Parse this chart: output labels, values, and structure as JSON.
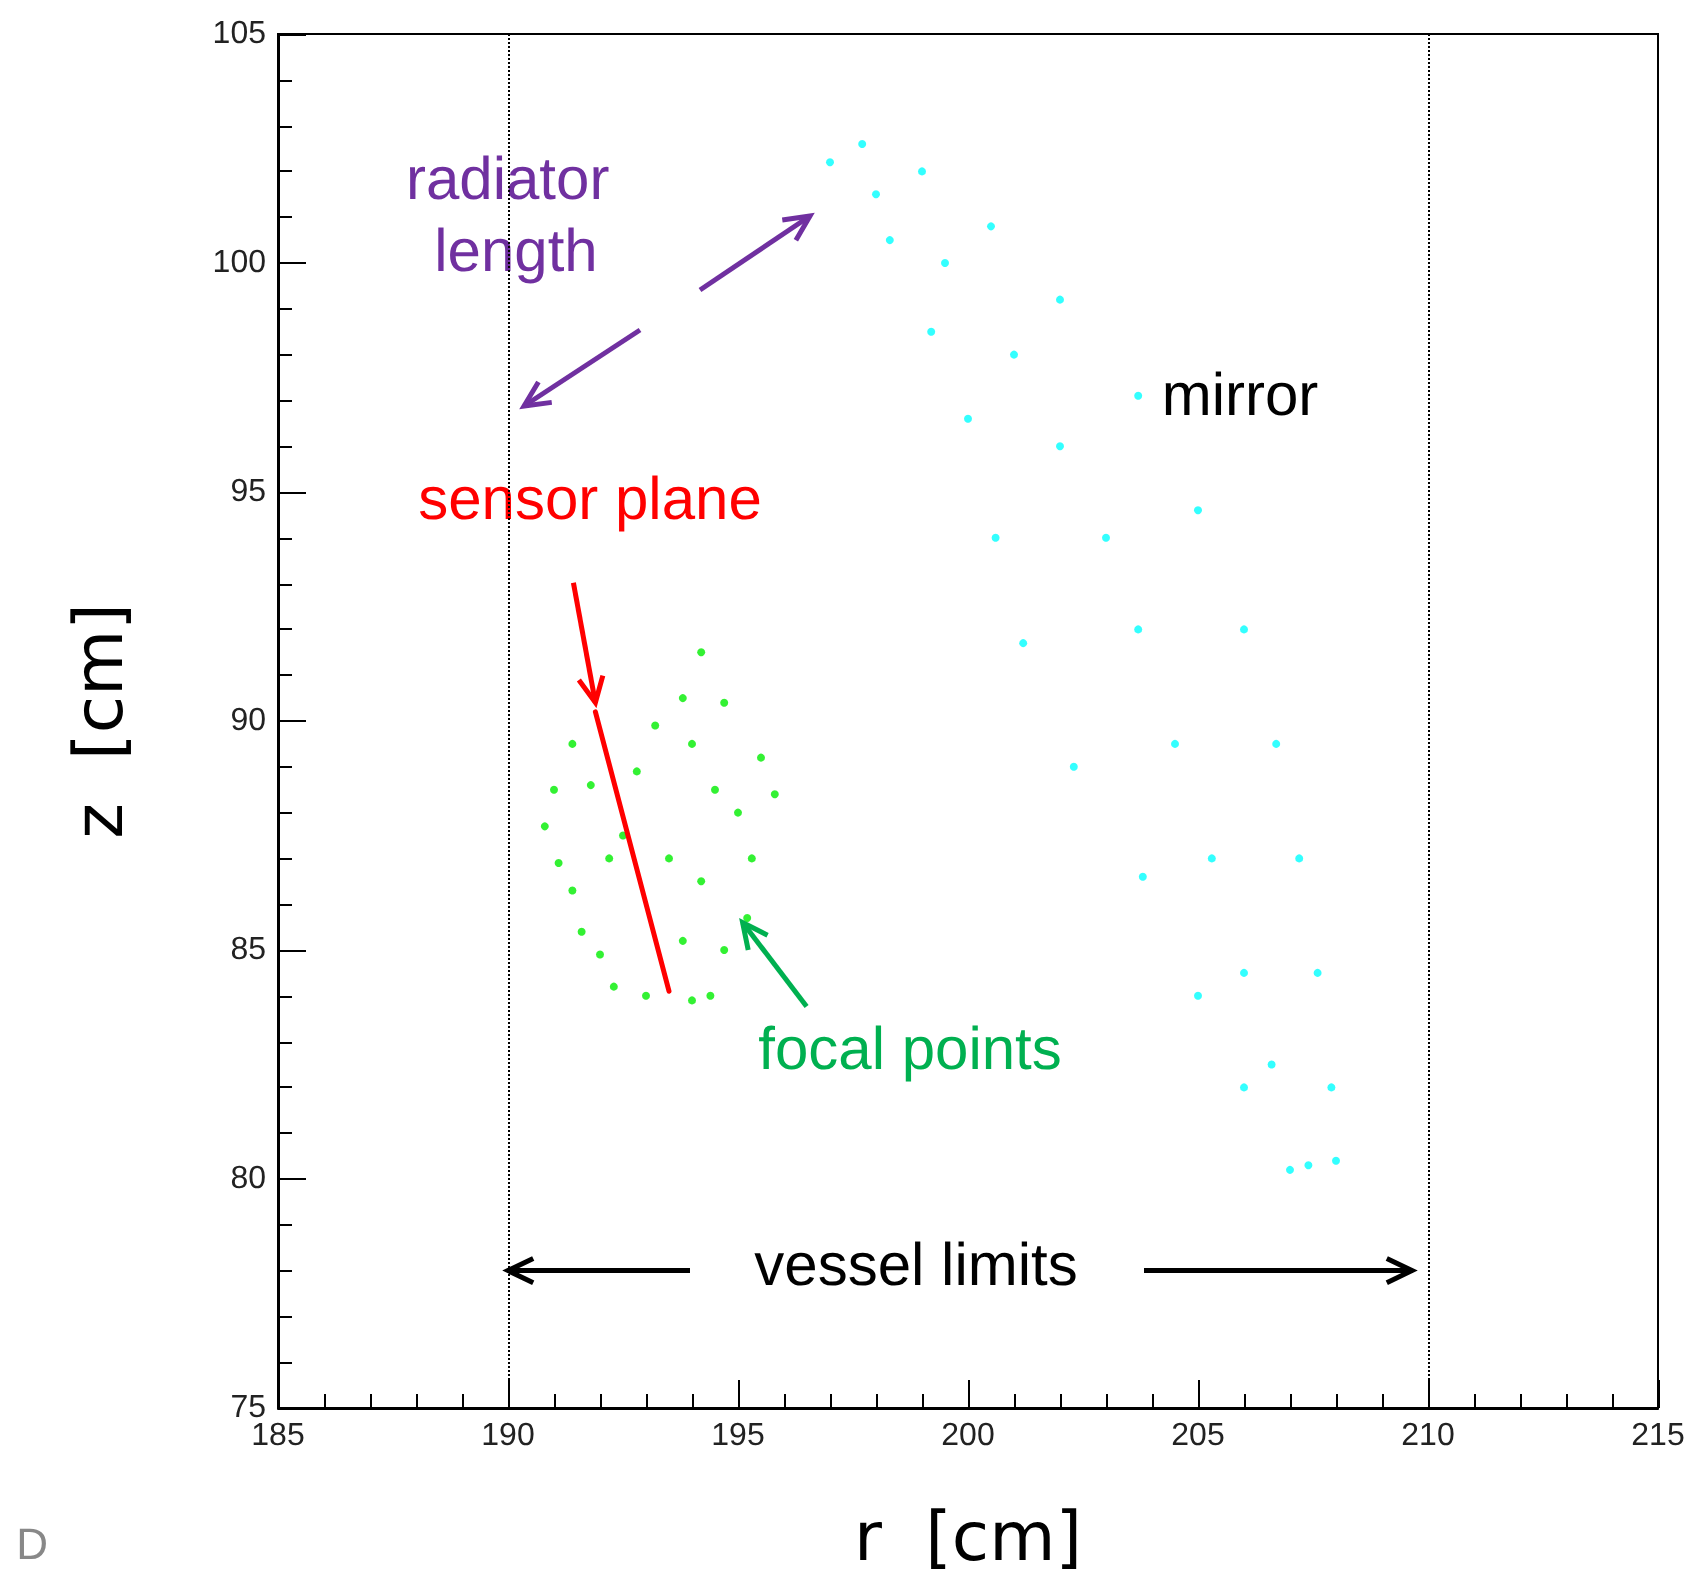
{
  "chart_data": {
    "type": "scatter",
    "xlabel": "r  [cm]",
    "ylabel": "z  [cm]",
    "xlim": [
      185,
      215
    ],
    "xticks": [
      185,
      190,
      195,
      200,
      205,
      210,
      215
    ],
    "ylim": [
      75,
      105
    ],
    "yticks": [
      75,
      80,
      85,
      90,
      95,
      100,
      105
    ],
    "grid": false,
    "marker": "circle",
    "series": [
      {
        "color": "#00ffff",
        "x": [
          197.7,
          199,
          200.5,
          202,
          203.7,
          205,
          206,
          206.7,
          207.2,
          207.6,
          207.9,
          208,
          197,
          198.3,
          199.2,
          200,
          200.6,
          201.2,
          202.3,
          203.8,
          205,
          206,
          207,
          198,
          199.5,
          201,
          202,
          203,
          203.7,
          204.5,
          205.3,
          206,
          206.6,
          207.4
        ],
        "values": [
          102.6,
          102,
          100.8,
          99.2,
          97.1,
          94.6,
          92,
          89.5,
          87,
          84.5,
          82,
          80.4,
          102.2,
          100.5,
          98.5,
          96.6,
          94,
          91.7,
          89,
          86.6,
          84,
          82,
          80.2,
          101.5,
          100,
          98,
          96,
          94,
          92,
          89.5,
          87,
          84.5,
          82.5,
          80.3
        ]
      },
      {
        "color": "#00ee00",
        "x": [
          191.4,
          191,
          190.8,
          191.1,
          191.4,
          191.6,
          192,
          192.3,
          193,
          194,
          194.4,
          194.7,
          195.2,
          195.3,
          195.8,
          195.5,
          194.7,
          194.2,
          193.8,
          193.2,
          192.8,
          192.5,
          193.5,
          194.2,
          192.2,
          191.8,
          194.5,
          193.8,
          195,
          194
        ],
        "values": [
          89.5,
          88.5,
          87.7,
          86.9,
          86.3,
          85.4,
          84.9,
          84.2,
          84,
          83.9,
          84,
          85,
          85.7,
          87,
          88.4,
          89.2,
          90.4,
          91.5,
          90.5,
          89.9,
          88.9,
          87.5,
          87,
          86.5,
          87,
          88.6,
          88.5,
          85.2,
          88,
          89.5
        ]
      },
      {
        "type": "line",
        "marker": "none",
        "color": "#ff0000",
        "x": [
          191.9,
          193.5
        ],
        "values": [
          90.2,
          84.1
        ]
      }
    ],
    "ref_lines": [
      {
        "axis": "x",
        "value": 190,
        "color": "#000000",
        "line_style": "dotted"
      },
      {
        "axis": "x",
        "value": 210,
        "color": "#000000",
        "line_style": "dotted"
      }
    ],
    "annotations": [
      "radiator length",
      "mirror",
      {
        "text": "sensor plane",
        "x": 191.9,
        "y": 90.4
      },
      {
        "text": "focal points",
        "x": 195.1,
        "y": 85.6
      },
      {
        "text": "vessel limits",
        "x": 190,
        "y": 78
      },
      "D"
    ]
  }
}
